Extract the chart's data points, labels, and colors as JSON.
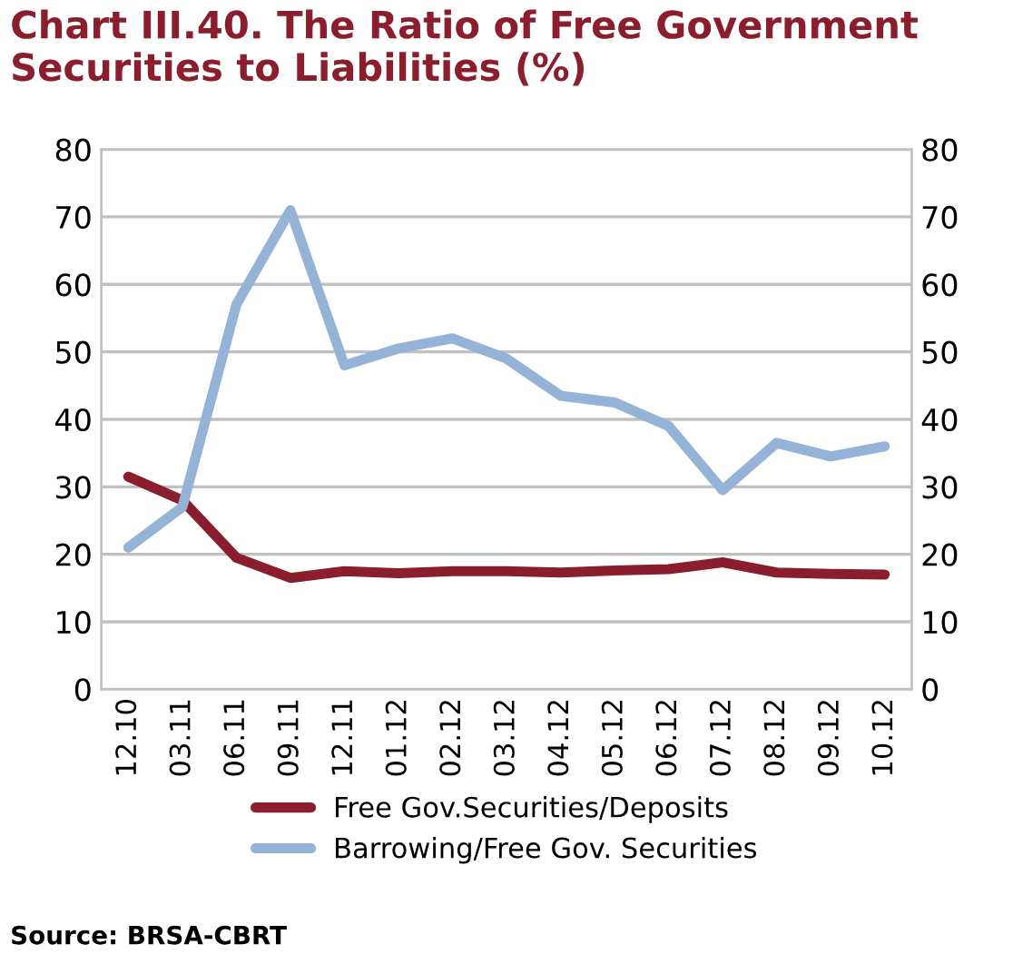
{
  "chart_data": {
    "type": "line",
    "title": "Chart III.40. The Ratio of Free Government Securities to Liabilities (%)",
    "categories": [
      "12.10",
      "03.11",
      "06.11",
      "09.11",
      "12.11",
      "01.12",
      "02.12",
      "03.12",
      "04.12",
      "05.12",
      "06.12",
      "07.12",
      "08.12",
      "09.12",
      "10.12"
    ],
    "series": [
      {
        "name": "Free Gov.Securities/Deposits",
        "color": "#8b1e2d",
        "values": [
          31.5,
          28,
          19.5,
          16.5,
          17.5,
          17.2,
          17.5,
          17.5,
          17.3,
          17.6,
          17.8,
          18.8,
          17.3,
          17.1,
          17.0
        ]
      },
      {
        "name": "Barrowing/Free Gov. Securities",
        "color": "#95b3d7",
        "values": [
          21,
          27,
          57,
          71,
          48,
          50.5,
          52,
          49,
          43.5,
          42.5,
          39,
          29.5,
          36.5,
          34.5,
          36
        ]
      }
    ],
    "ylim": [
      0,
      80
    ],
    "yticks": [
      0,
      10,
      20,
      30,
      40,
      50,
      60,
      70,
      80
    ],
    "y2lim": [
      0,
      80
    ],
    "y2ticks": [
      0,
      10,
      20,
      30,
      40,
      50,
      60,
      70,
      80
    ],
    "grid": "y",
    "legend": "bottom",
    "marker": "none",
    "line_style": "solid",
    "annotations": [
      "Source: BRSA-CBRT"
    ]
  }
}
